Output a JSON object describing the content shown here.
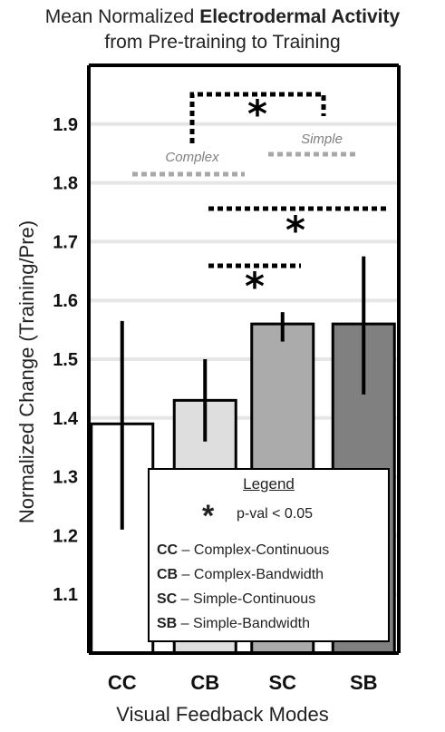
{
  "title": {
    "line1_prefix": "Mean Normalized ",
    "line1_bold": "Electrodermal Activity",
    "line2": "from Pre-training to Training"
  },
  "chart_data": {
    "type": "bar",
    "categories": [
      "CC",
      "CB",
      "SC",
      "SB"
    ],
    "values": [
      1.39,
      1.43,
      1.56,
      1.56
    ],
    "error_low": [
      1.21,
      1.36,
      1.53,
      1.44
    ],
    "error_high": [
      1.565,
      1.5,
      1.58,
      1.675
    ],
    "bar_colors": [
      "#ffffff",
      "#dedede",
      "#ababab",
      "#808080"
    ],
    "xlabel": "Visual Feedback Modes",
    "ylabel": "Normalized Change (Training/Pre)",
    "ylim": [
      1.0,
      2.0
    ],
    "yticks": [
      "1.1",
      "1.2",
      "1.3",
      "1.4",
      "1.5",
      "1.6",
      "1.7",
      "1.8",
      "1.9"
    ],
    "grid": true,
    "annotations": {
      "complex_label": "Complex",
      "simple_label": "Simple",
      "significance_marker": "*"
    }
  },
  "legend": {
    "title": "Legend",
    "pvalue_symbol": "*",
    "pvalue_text": "p-val < 0.05",
    "items": [
      {
        "code": "CC",
        "text": " – Complex-Continuous"
      },
      {
        "code": "CB",
        "text": " – Complex-Bandwidth"
      },
      {
        "code": "SC",
        "text": " – Simple-Continuous"
      },
      {
        "code": "SB",
        "text": " – Simple-Bandwidth"
      }
    ]
  }
}
